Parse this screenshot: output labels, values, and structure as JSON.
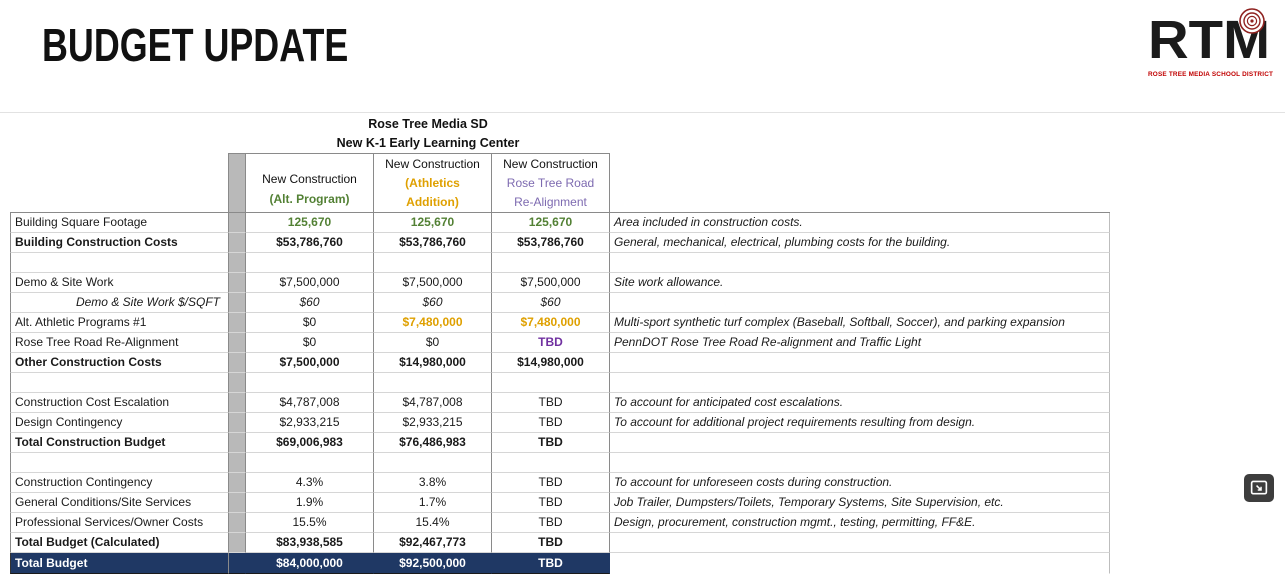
{
  "page": {
    "heading": "BUDGET UPDATE"
  },
  "logo": {
    "text": "RTM",
    "subtext": "ROSE TREE MEDIA SCHOOL DISTRICT"
  },
  "colors": {
    "green": "#538135",
    "gold": "#DFA000",
    "purple": "#7030A0",
    "purple_light": "#7d6ab0",
    "navy": "#1F3864",
    "logo_red": "#c00000"
  },
  "table": {
    "title_line1": "Rose Tree Media SD",
    "title_line2": "New K-1 Early Learning Center",
    "columns": [
      {
        "accent": "green",
        "lines": [
          "New Construction",
          "(Alt. Program)"
        ]
      },
      {
        "accent": "gold",
        "lines": [
          "New Construction",
          "(Athletics",
          "Addition)"
        ]
      },
      {
        "accent": "purple",
        "lines": [
          "New Construction",
          "Rose Tree Road",
          "Re-Alignment"
        ]
      }
    ],
    "rows": [
      {
        "row_type": "data",
        "label": "Building Square Footage",
        "label_style": "plain",
        "values": [
          "125,670",
          "125,670",
          "125,670"
        ],
        "value_styles": [
          "green",
          "green",
          "green"
        ],
        "note": "Area included in construction costs."
      },
      {
        "row_type": "data",
        "label": "Building Construction Costs",
        "label_style": "bold",
        "values": [
          "$53,786,760",
          "$53,786,760",
          "$53,786,760"
        ],
        "value_styles": [
          "bold",
          "bold",
          "bold"
        ],
        "note": "General, mechanical, electrical, plumbing costs for the building."
      },
      {
        "row_type": "spacer"
      },
      {
        "row_type": "data",
        "label": "Demo & Site Work",
        "label_style": "plain",
        "values": [
          "$7,500,000",
          "$7,500,000",
          "$7,500,000"
        ],
        "value_styles": [
          "plain",
          "plain",
          "plain"
        ],
        "note": "Site work allowance."
      },
      {
        "row_type": "data",
        "label": "Demo & Site Work $/SQFT",
        "label_style": "italic-right",
        "values": [
          "$60",
          "$60",
          "$60"
        ],
        "value_styles": [
          "italic",
          "italic",
          "italic"
        ],
        "note": ""
      },
      {
        "row_type": "data",
        "label": "Alt. Athletic Programs #1",
        "label_style": "plain",
        "values": [
          "$0",
          "$7,480,000",
          "$7,480,000"
        ],
        "value_styles": [
          "plain",
          "gold",
          "gold"
        ],
        "note": "Multi-sport synthetic turf complex (Baseball, Softball, Soccer), and parking expansion"
      },
      {
        "row_type": "data",
        "label": "Rose Tree Road Re-Alignment",
        "label_style": "plain",
        "values": [
          "$0",
          "$0",
          "TBD"
        ],
        "value_styles": [
          "plain",
          "plain",
          "purple"
        ],
        "note": "PennDOT Rose Tree Road Re-alignment and Traffic Light"
      },
      {
        "row_type": "data",
        "label": "Other Construction Costs",
        "label_style": "bold",
        "values": [
          "$7,500,000",
          "$14,980,000",
          "$14,980,000"
        ],
        "value_styles": [
          "bold",
          "bold",
          "bold"
        ],
        "note": ""
      },
      {
        "row_type": "spacer"
      },
      {
        "row_type": "data",
        "label": "Construction Cost Escalation",
        "label_style": "plain",
        "values": [
          "$4,787,008",
          "$4,787,008",
          "TBD"
        ],
        "value_styles": [
          "plain",
          "plain",
          "plain"
        ],
        "note": "To account for anticipated cost escalations."
      },
      {
        "row_type": "data",
        "label": "Design Contingency",
        "label_style": "plain",
        "values": [
          "$2,933,215",
          "$2,933,215",
          "TBD"
        ],
        "value_styles": [
          "plain",
          "plain",
          "plain"
        ],
        "note": "To account for additional project requirements resulting from design."
      },
      {
        "row_type": "data",
        "label": "Total Construction Budget",
        "label_style": "bold",
        "values": [
          "$69,006,983",
          "$76,486,983",
          "TBD"
        ],
        "value_styles": [
          "bold",
          "bold",
          "bold"
        ],
        "note": ""
      },
      {
        "row_type": "spacer"
      },
      {
        "row_type": "data",
        "label": "Construction Contingency",
        "label_style": "plain",
        "values": [
          "4.3%",
          "3.8%",
          "TBD"
        ],
        "value_styles": [
          "plain",
          "plain",
          "plain"
        ],
        "note": "To account for unforeseen costs during construction."
      },
      {
        "row_type": "data",
        "label": "General Conditions/Site Services",
        "label_style": "plain",
        "values": [
          "1.9%",
          "1.7%",
          "TBD"
        ],
        "value_styles": [
          "plain",
          "plain",
          "plain"
        ],
        "note": "Job Trailer, Dumpsters/Toilets, Temporary Systems, Site Supervision, etc."
      },
      {
        "row_type": "data",
        "label": "Professional Services/Owner Costs",
        "label_style": "plain",
        "values": [
          "15.5%",
          "15.4%",
          "TBD"
        ],
        "value_styles": [
          "plain",
          "plain",
          "plain"
        ],
        "note": "Design, procurement, construction mgmt., testing, permitting, FF&E."
      },
      {
        "row_type": "data",
        "label": "Total Budget (Calculated)",
        "label_style": "bold",
        "values": [
          "$83,938,585",
          "$92,467,773",
          "TBD"
        ],
        "value_styles": [
          "bold",
          "bold",
          "bold"
        ],
        "note": ""
      },
      {
        "row_type": "total",
        "label": "Total Budget",
        "label_style": "bold",
        "values": [
          "$84,000,000",
          "$92,500,000",
          "TBD"
        ],
        "value_styles": [
          "bold",
          "bold",
          "bold"
        ],
        "note": ""
      }
    ]
  }
}
